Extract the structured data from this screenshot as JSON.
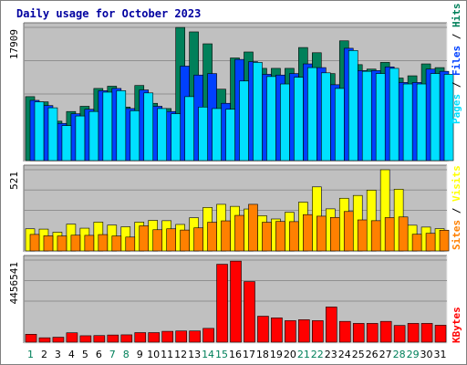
{
  "title": "Daily usage for October 2023",
  "colors": {
    "background": "#ffffff",
    "plot_bg": "#c0c0c0",
    "frame_light": "#e8e8e8",
    "frame_dark": "#707070",
    "title": "#0000a0",
    "hits": "#00805a",
    "files": "#0040ff",
    "pages": "#00e0ff",
    "visits": "#ffff00",
    "sites": "#ff8000",
    "kbytes": "#ff0000",
    "weekday_label": "#000000",
    "weekend_label": "#00805a"
  },
  "chart_data": [
    {
      "type": "bar",
      "title": "Daily usage for October 2023",
      "ylabel_max": "17909",
      "legend": [
        "Pages",
        "Files",
        "Hits"
      ],
      "categories": [
        "1",
        "2",
        "3",
        "4",
        "5",
        "6",
        "7",
        "8",
        "9",
        "10",
        "11",
        "12",
        "13",
        "14",
        "15",
        "16",
        "17",
        "18",
        "19",
        "20",
        "21",
        "22",
        "23",
        "24",
        "25",
        "26",
        "27",
        "28",
        "29",
        "30",
        "31"
      ],
      "weekend_days": [
        "1",
        "7",
        "8",
        "14",
        "15",
        "21",
        "22",
        "28",
        "29"
      ],
      "series": [
        {
          "name": "Hits",
          "values": [
            8600,
            7900,
            5300,
            6600,
            7300,
            9700,
            10000,
            7200,
            10100,
            7700,
            7000,
            17900,
            17300,
            15700,
            9600,
            13800,
            14600,
            12400,
            12400,
            12400,
            15200,
            14500,
            11700,
            16100,
            12900,
            12300,
            13200,
            11100,
            11400,
            13000,
            12500
          ]
        },
        {
          "name": "Files",
          "values": [
            8100,
            7400,
            5000,
            6300,
            6900,
            9400,
            9700,
            7000,
            9500,
            7300,
            6600,
            12700,
            11500,
            11700,
            7700,
            13600,
            13300,
            11600,
            11500,
            11700,
            13000,
            12500,
            10200,
            15100,
            12100,
            12100,
            12600,
            10500,
            10500,
            12300,
            12000
          ]
        },
        {
          "name": "Pages",
          "values": [
            7900,
            7100,
            4700,
            6000,
            6600,
            9200,
            9400,
            6700,
            9100,
            7000,
            6300,
            8600,
            7200,
            7000,
            6900,
            10700,
            13200,
            11300,
            10300,
            11200,
            12500,
            11800,
            9700,
            14800,
            12000,
            11700,
            12400,
            10300,
            10300,
            11700,
            11600
          ]
        }
      ]
    },
    {
      "type": "bar",
      "ylabel_max": "521",
      "legend": [
        "Sites",
        "Visits"
      ],
      "categories": [
        "1",
        "2",
        "3",
        "4",
        "5",
        "6",
        "7",
        "8",
        "9",
        "10",
        "11",
        "12",
        "13",
        "14",
        "15",
        "16",
        "17",
        "18",
        "19",
        "20",
        "21",
        "22",
        "23",
        "24",
        "25",
        "26",
        "27",
        "28",
        "29",
        "30",
        "31"
      ],
      "series": [
        {
          "name": "Visits",
          "values": [
            142,
            140,
            120,
            172,
            146,
            185,
            166,
            155,
            185,
            196,
            194,
            170,
            213,
            279,
            299,
            286,
            269,
            226,
            205,
            248,
            313,
            411,
            270,
            338,
            356,
            390,
            521,
            396,
            165,
            153,
            143
          ]
        },
        {
          "name": "Sites",
          "values": [
            106,
            97,
            96,
            101,
            100,
            105,
            96,
            89,
            161,
            136,
            142,
            134,
            148,
            184,
            193,
            228,
            299,
            184,
            189,
            188,
            233,
            223,
            215,
            253,
            199,
            194,
            214,
            218,
            107,
            113,
            133
          ]
        }
      ]
    },
    {
      "type": "bar",
      "ylabel_max": "4456541",
      "legend": [
        "KBytes"
      ],
      "categories": [
        "1",
        "2",
        "3",
        "4",
        "5",
        "6",
        "7",
        "8",
        "9",
        "10",
        "11",
        "12",
        "13",
        "14",
        "15",
        "16",
        "17",
        "18",
        "19",
        "20",
        "21",
        "22",
        "23",
        "24",
        "25",
        "26",
        "27",
        "28",
        "29",
        "30",
        "31"
      ],
      "series": [
        {
          "name": "KBytes",
          "values": [
            430000,
            240000,
            270000,
            510000,
            350000,
            360000,
            390000,
            400000,
            520000,
            520000,
            590000,
            610000,
            610000,
            750000,
            4230000,
            4400000,
            3290000,
            1410000,
            1320000,
            1170000,
            1220000,
            1170000,
            1910000,
            1130000,
            1020000,
            1020000,
            1130000,
            910000,
            1020000,
            1020000,
            920000
          ]
        }
      ]
    }
  ]
}
